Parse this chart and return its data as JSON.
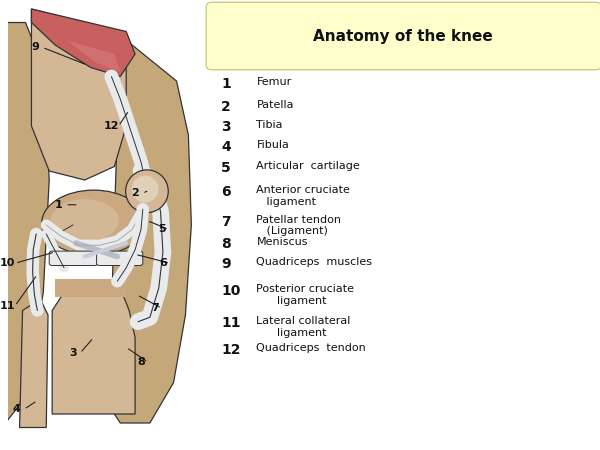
{
  "title": "Anatomy of the knee",
  "title_box_color": "#ffffcc",
  "title_box_edge": "#cccc88",
  "background_color": "#ffffff",
  "legend_items": [
    {
      "num": "1",
      "text": "Femur"
    },
    {
      "num": "2",
      "text": "Patella"
    },
    {
      "num": "3",
      "text": "Tibia"
    },
    {
      "num": "4",
      "text": "Fibula"
    },
    {
      "num": "5",
      "text": "Articular  cartilage"
    },
    {
      "num": "6",
      "text": "Anterior cruciate\n   ligament"
    },
    {
      "num": "7",
      "text": "Patellar tendon\n   (Ligament)"
    },
    {
      "num": "8",
      "text": "Meniscus"
    },
    {
      "num": "9",
      "text": "Quadriceps  muscles"
    },
    {
      "num": "10",
      "text": "Posterior cruciate\n      ligament"
    },
    {
      "num": "11",
      "text": "Lateral collateral\n      ligament"
    },
    {
      "num": "12",
      "text": "Quadriceps  tendon"
    }
  ],
  "colors": {
    "bone_light": "#d4b896",
    "bone_medium": "#c9a882",
    "bone_dark": "#b8956d",
    "muscle_red": "#c96060",
    "muscle_light": "#d98080",
    "cartilage": "#c8cfd8",
    "cartilage_light": "#dde3ea",
    "tendon": "#e8e4d8",
    "line_color": "#333333",
    "femur_condyle": "#c8b090",
    "outer_bone": "#c4a87a",
    "white_struct": "#e8eaec"
  }
}
